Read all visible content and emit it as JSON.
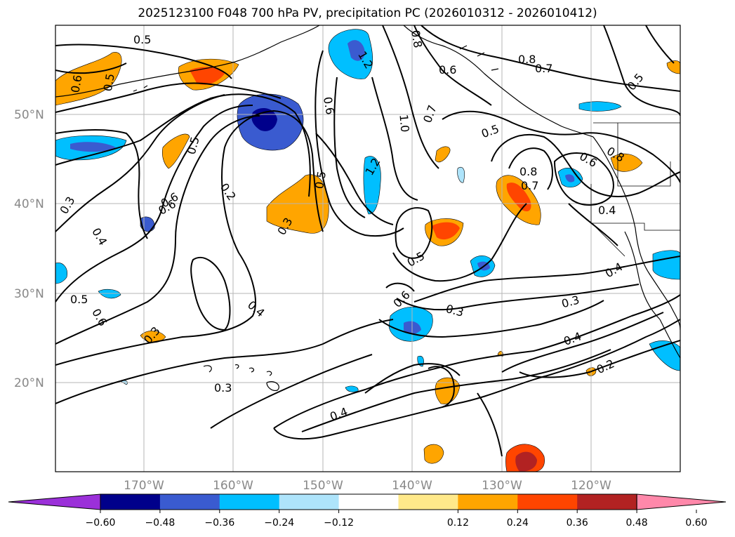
{
  "title": "2025123100 F048 700 hPa PV, precipitation PC (2026010312 - 2026010412)",
  "lat_labels": [
    "50°N",
    "40°N",
    "30°N",
    "20°N"
  ],
  "lon_labels": [
    "170°W",
    "160°W",
    "150°W",
    "140°W",
    "130°W",
    "120°W"
  ],
  "contour_labels": [
    "0.5",
    "0.6",
    "0.5",
    "0.6",
    "0.5",
    "1.2",
    "0.8",
    "0.6",
    "0.8",
    "0.7",
    "0.5",
    "0.6",
    "1.0",
    "0.7",
    "0.5",
    "0.8",
    "0.7",
    "0.6",
    "0.8",
    "0.4",
    "0.3",
    "0.6",
    "0.4",
    "0.2",
    "0.5",
    "0.3",
    "0.5",
    "0.5",
    "0.6",
    "0.3",
    "0.4",
    "0.4",
    "0.3",
    "0.4",
    "0.2",
    "0.3",
    "0.6",
    "0.3",
    "0.4",
    "1.2"
  ],
  "colorbar": {
    "ticks": [
      "−0.60",
      "−0.48",
      "−0.36",
      "−0.24",
      "−0.12",
      "0.12",
      "0.24",
      "0.36",
      "0.48",
      "0.60"
    ],
    "colors": [
      "#9b30d9",
      "#00008b",
      "#3a5bd0",
      "#00bfff",
      "#aee4fb",
      "#ffffff",
      "#ffe98a",
      "#ffa500",
      "#ff4500",
      "#b22222",
      "#ff88aa"
    ]
  }
}
